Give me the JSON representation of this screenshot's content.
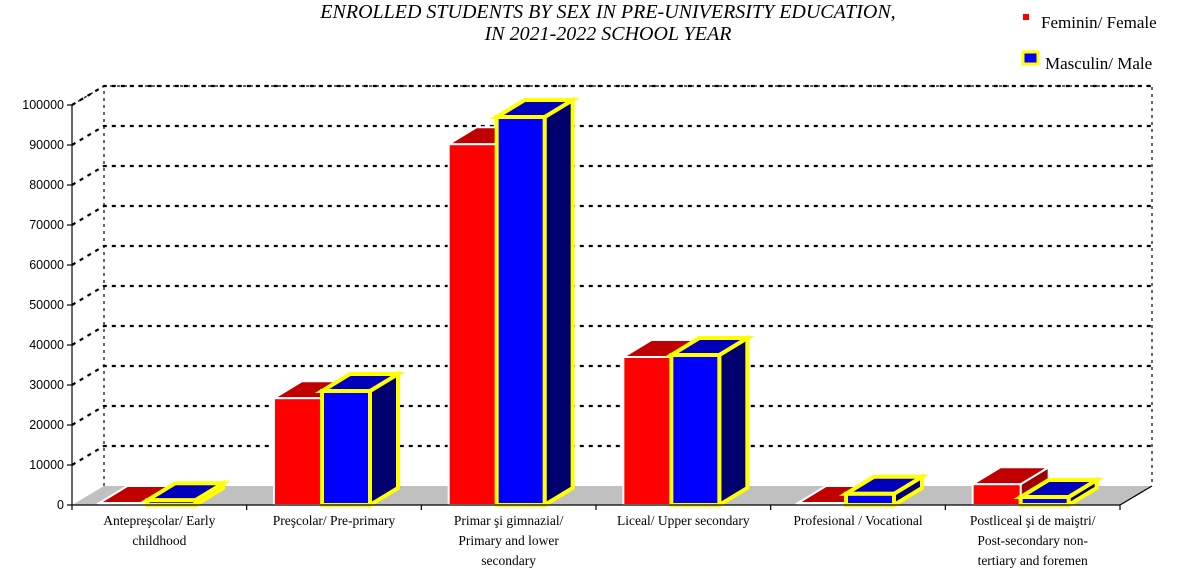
{
  "chart_data": {
    "type": "bar",
    "title": [
      "ENROLLED STUDENTS BY SEX IN PRE-UNIVERSITY EDUCATION,",
      "IN 2021-2022 SCHOOL YEAR"
    ],
    "xlabel": "",
    "ylabel": "",
    "ylim": [
      0,
      100000
    ],
    "yticks": [
      0,
      10000,
      20000,
      30000,
      40000,
      50000,
      60000,
      70000,
      80000,
      90000,
      100000
    ],
    "grid": true,
    "legend_position": "top-right",
    "categories": [
      [
        "Antepreşcolar/ Early",
        "childhood"
      ],
      [
        "Preşcolar/ Pre-primary"
      ],
      [
        "Primar şi gimnazial/",
        "Primary and lower",
        "secondary"
      ],
      [
        "Liceal/ Upper secondary"
      ],
      [
        "Profesional / Vocational"
      ],
      [
        "Postliceal şi de maiştri/",
        "Post-secondary non-",
        "tertiary and foremen"
      ]
    ],
    "series": [
      {
        "name": "Feminin/ Female",
        "values": [
          300,
          26700,
          90200,
          37000,
          200,
          5200
        ]
      },
      {
        "name": "Masculin/ Male",
        "values": [
          1200,
          28500,
          97000,
          37500,
          2800,
          2000
        ]
      }
    ]
  },
  "colors": {
    "female_front": "#ff0000",
    "female_top": "#c00000",
    "female_side": "#a00000",
    "male_front": "#0000ff",
    "male_top": "#0000bb",
    "male_side": "#00006e",
    "male_outline": "#ffff00",
    "floor": "#c0c0c0"
  }
}
